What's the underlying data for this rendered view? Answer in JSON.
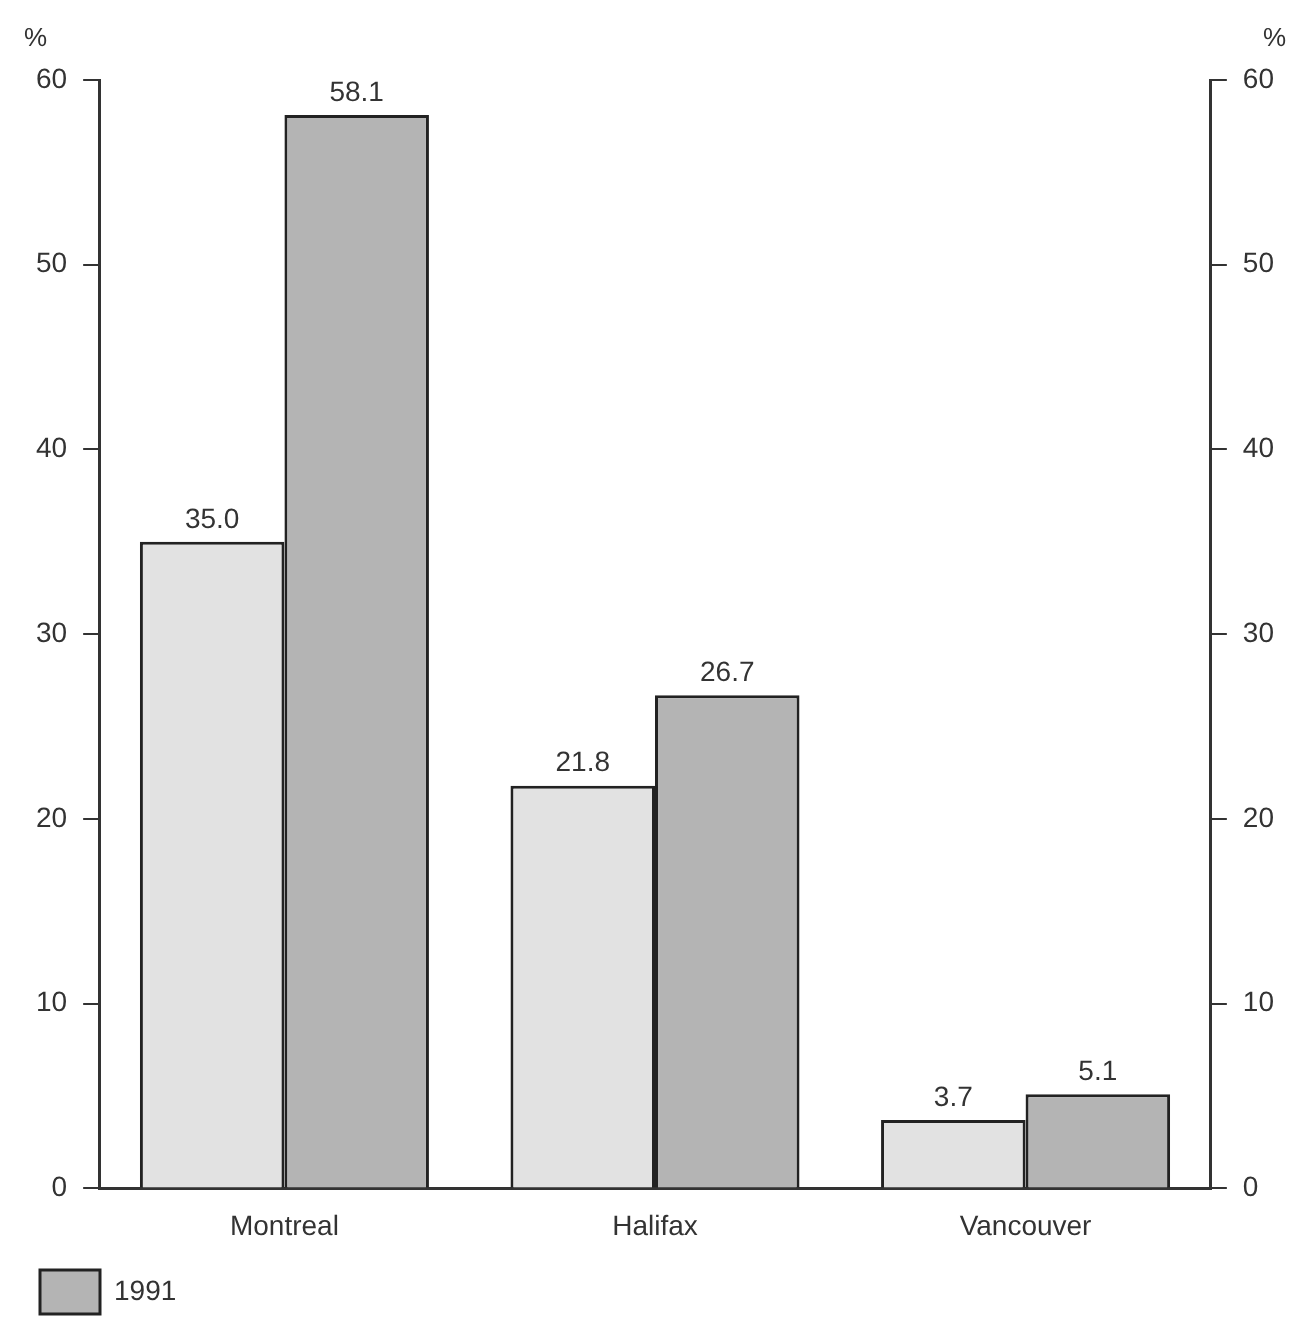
{
  "chart_data": {
    "type": "bar",
    "ylabel": "%",
    "y2label": "%",
    "categories": [
      "Montreal",
      "Halifax",
      "Vancouver"
    ],
    "series": [
      {
        "color": "#e2e2e2",
        "values": [
          35.0,
          21.8,
          3.7
        ],
        "value_labels": [
          "35.0",
          "21.8",
          "3.7"
        ]
      },
      {
        "name": "1991",
        "color": "#b4b4b4",
        "values": [
          58.1,
          26.7,
          5.1
        ],
        "value_labels": [
          "58.1",
          "26.7",
          "5.1"
        ]
      }
    ],
    "ylim": [
      0,
      60
    ],
    "yticks": [
      0,
      10,
      20,
      30,
      40,
      50,
      60
    ],
    "y2lim": [
      0,
      60
    ],
    "y2ticks": [
      0,
      10,
      20,
      30,
      40,
      50,
      60
    ],
    "grid": false,
    "legend": "bottom left"
  }
}
